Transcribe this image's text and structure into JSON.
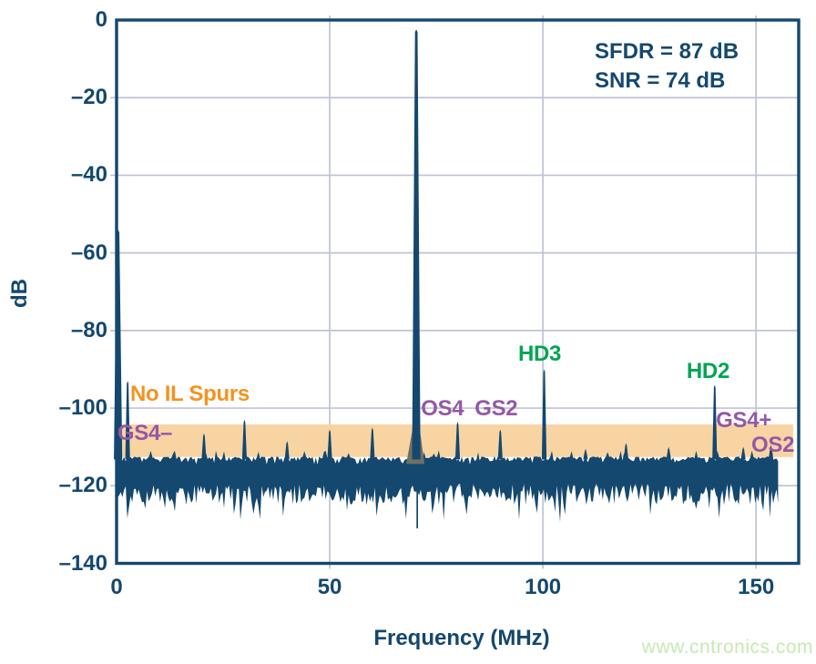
{
  "page": {
    "watermark": "www.cntronics.com"
  },
  "chart_data": {
    "type": "line",
    "title": "",
    "xlabel": "Frequency (MHz)",
    "ylabel": "dB",
    "xlim": [
      0,
      160
    ],
    "ylim": [
      -140,
      0
    ],
    "grid": true,
    "x_ticks": [
      0,
      50,
      100,
      150
    ],
    "x_tick_labels": [
      "0",
      "50",
      "100",
      "150"
    ],
    "y_ticks": [
      0,
      -20,
      -40,
      -60,
      -80,
      -100,
      -120,
      -140
    ],
    "y_tick_labels": [
      "0",
      "–20",
      "–40",
      "–60",
      "–80",
      "–100",
      "–120",
      "–140"
    ],
    "stats": {
      "line1": "SFDR = 87 dB",
      "line2": "SNR = 74 dB"
    },
    "noise_floor": {
      "top_db": -112.5,
      "bottom_db": -123,
      "start_mhz": 0,
      "end_mhz": 155.5
    },
    "highlight_band": {
      "from_db": -104.2,
      "to_db": -112.6,
      "start_mhz": 0,
      "end_mhz": 158.7
    },
    "peaks": [
      {
        "name": "dc-leakage",
        "mhz": 0.35,
        "db": -54
      },
      {
        "name": "gs4-minus-spur",
        "mhz": 2.6,
        "db": -93
      },
      {
        "name": "spur-8",
        "mhz": 8.0,
        "db": -111
      },
      {
        "name": "spur-20",
        "mhz": 20.5,
        "db": -106.5
      },
      {
        "name": "spur-30",
        "mhz": 30.0,
        "db": -103
      },
      {
        "name": "spur-40",
        "mhz": 40.0,
        "db": -108.5
      },
      {
        "name": "spur-50",
        "mhz": 50.0,
        "db": -105.5
      },
      {
        "name": "spur-60",
        "mhz": 60.0,
        "db": -105
      },
      {
        "name": "fundamental",
        "mhz": 70.3,
        "db": -2.4
      },
      {
        "name": "os4-spur",
        "mhz": 80.0,
        "db": -103.5
      },
      {
        "name": "gs2-spur",
        "mhz": 90.0,
        "db": -105.5
      },
      {
        "name": "hd3-spur",
        "mhz": 100.3,
        "db": -90
      },
      {
        "name": "spur-110",
        "mhz": 110.0,
        "db": -110.5
      },
      {
        "name": "spur-120",
        "mhz": 119.5,
        "db": -109
      },
      {
        "name": "spur-130",
        "mhz": 129.5,
        "db": -110
      },
      {
        "name": "hd2-spur",
        "mhz": 140.3,
        "db": -94
      },
      {
        "name": "gs4-plus-spur",
        "mhz": 147.0,
        "db": -110
      },
      {
        "name": "os2-spur",
        "mhz": 153.5,
        "db": -109.5
      }
    ],
    "annotations": [
      {
        "name": "label-no-il-spurs",
        "text": "No IL Spurs",
        "mhz": 3.2,
        "db": -93.4,
        "color": "orange"
      },
      {
        "name": "label-gs4-minus",
        "text": "GS4–",
        "mhz": 0.2,
        "db": -103.5,
        "color": "purple"
      },
      {
        "name": "label-os4",
        "text": "OS4",
        "mhz": 71.4,
        "db": -97.2,
        "color": "purple"
      },
      {
        "name": "label-gs2",
        "text": "GS2",
        "mhz": 84.0,
        "db": -97.2,
        "color": "purple"
      },
      {
        "name": "label-hd3",
        "text": "HD3",
        "mhz": 94.2,
        "db": -83.1,
        "color": "green"
      },
      {
        "name": "label-hd2",
        "text": "HD2",
        "mhz": 133.7,
        "db": -87.5,
        "color": "green"
      },
      {
        "name": "label-gs4-plus",
        "text": "GS4+",
        "mhz": 140.6,
        "db": -100.2,
        "color": "purple"
      },
      {
        "name": "label-os2",
        "text": "OS2",
        "mhz": 148.9,
        "db": -106.5,
        "color": "purple"
      }
    ],
    "colors": {
      "trace": "#14486E",
      "frame": "#14486E",
      "grid": "#BFC3D6",
      "text": "#14486E",
      "orange": "#F6921E",
      "purple": "#9458A6",
      "green": "#00A551",
      "band": "#F8D4A3",
      "skirt": "#6F7060",
      "watermark": "#C6EAB4"
    }
  }
}
